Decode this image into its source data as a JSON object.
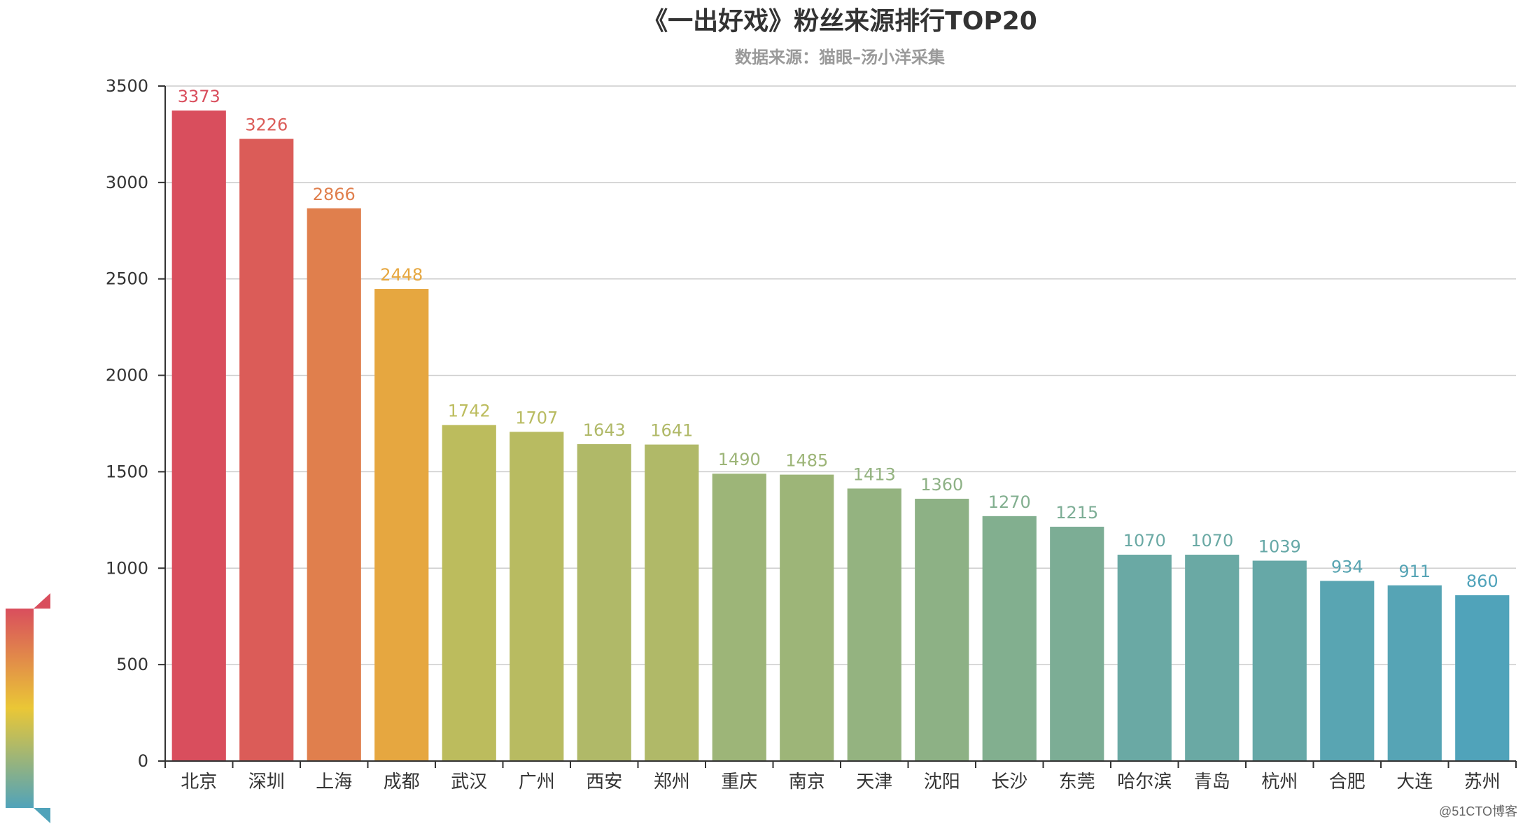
{
  "chart_data": {
    "type": "bar",
    "title": "《一出好戏》粉丝来源排行TOP20",
    "subtitle": "数据来源：猫眼–汤小洋采集",
    "categories": [
      "北京",
      "深圳",
      "上海",
      "成都",
      "武汉",
      "广州",
      "西安",
      "郑州",
      "重庆",
      "南京",
      "天津",
      "沈阳",
      "长沙",
      "东莞",
      "哈尔滨",
      "青岛",
      "杭州",
      "合肥",
      "大连",
      "苏州"
    ],
    "values": [
      3373,
      3226,
      2866,
      2448,
      1742,
      1707,
      1643,
      1641,
      1490,
      1485,
      1413,
      1360,
      1270,
      1215,
      1070,
      1070,
      1039,
      934,
      911,
      860
    ],
    "ylim": [
      0,
      3500
    ],
    "yticks": [
      0,
      500,
      1000,
      1500,
      2000,
      2500,
      3000,
      3500
    ],
    "grid": true,
    "visual_map": {
      "min": 860,
      "max": 3373,
      "colors": [
        "#d94e5d",
        "#eac736",
        "#50a3ba"
      ],
      "placement": "bottom-left"
    }
  },
  "watermark": "@51CTO博客"
}
